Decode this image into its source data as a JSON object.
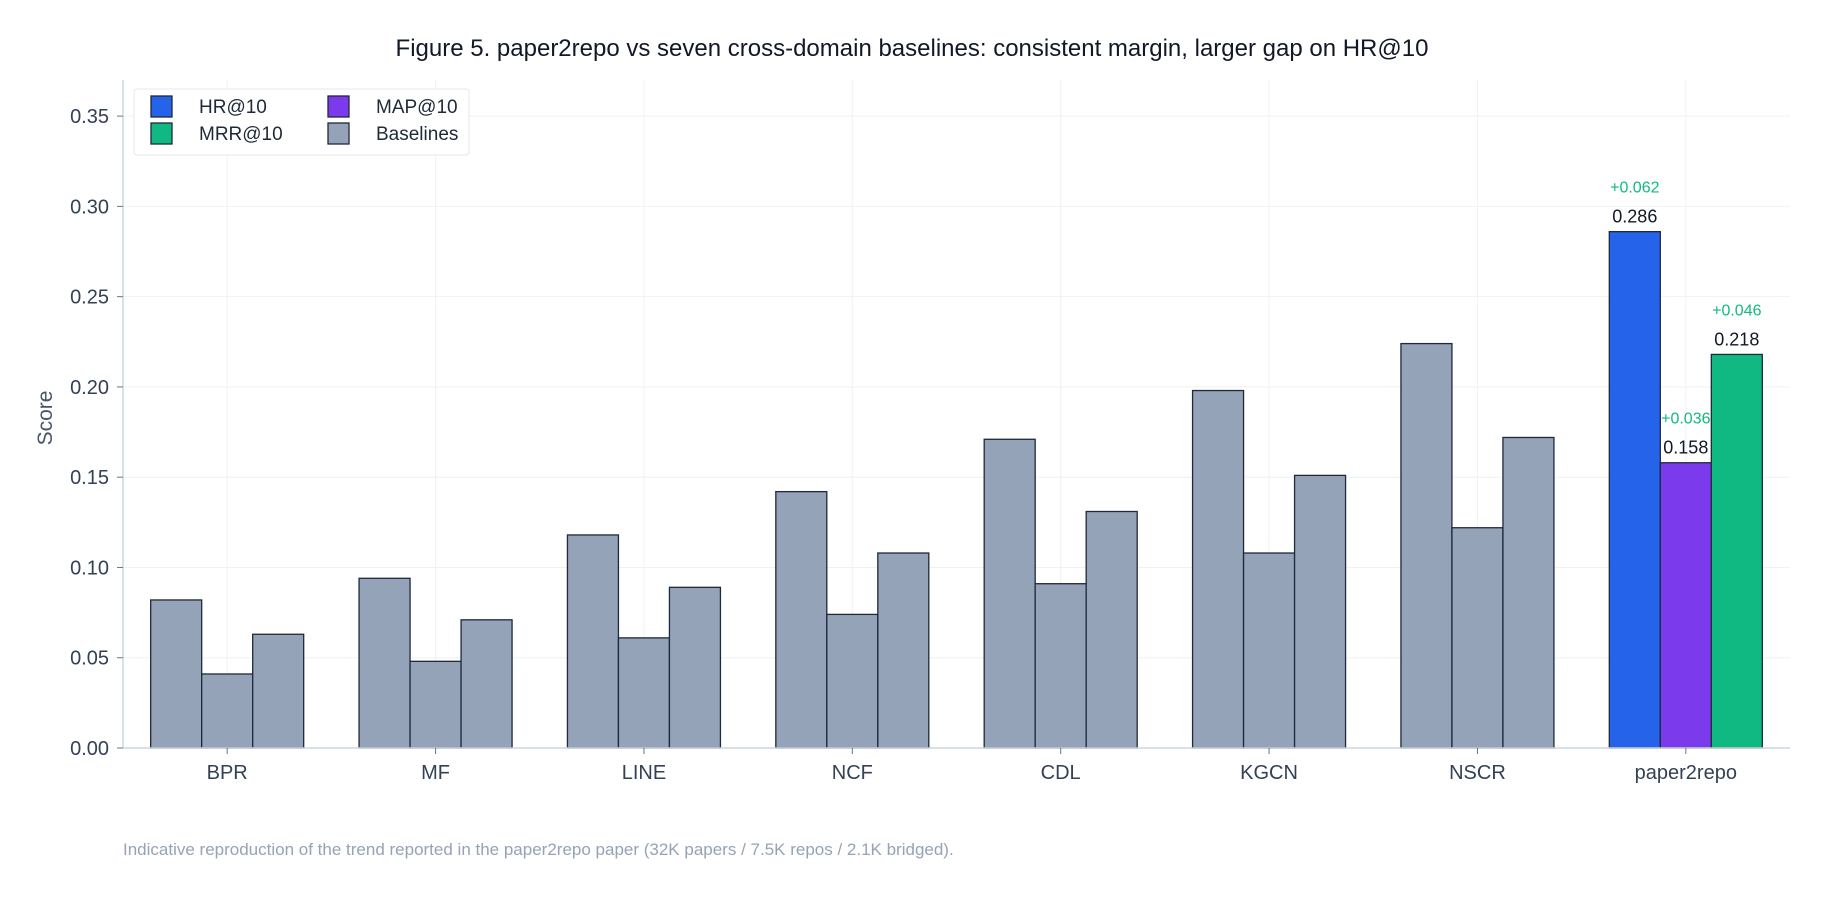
{
  "chart_data": {
    "type": "bar",
    "title": "Figure 5. paper2repo vs seven cross-domain baselines: consistent margin, larger gap on HR@10",
    "xlabel": "",
    "ylabel": "Score",
    "ylim": [
      0,
      0.37
    ],
    "yticks": [
      0.0,
      0.05,
      0.1,
      0.15,
      0.2,
      0.25,
      0.3,
      0.35
    ],
    "ytick_labels": [
      "0.00",
      "0.05",
      "0.10",
      "0.15",
      "0.20",
      "0.25",
      "0.30",
      "0.35"
    ],
    "grid": true,
    "categories": [
      "BPR",
      "MF",
      "LINE",
      "NCF",
      "CDL",
      "KGCN",
      "NSCR",
      "paper2repo"
    ],
    "series": [
      {
        "name": "HR@10",
        "values": [
          0.082,
          0.094,
          0.118,
          0.142,
          0.171,
          0.198,
          0.224,
          0.286
        ]
      },
      {
        "name": "MAP@10",
        "values": [
          0.041,
          0.048,
          0.061,
          0.074,
          0.091,
          0.108,
          0.122,
          0.158
        ]
      },
      {
        "name": "MRR@10",
        "values": [
          0.063,
          0.071,
          0.089,
          0.108,
          0.131,
          0.151,
          0.172,
          0.218
        ]
      }
    ],
    "legend": {
      "placement": "top-left",
      "entries": [
        "HR@10",
        "MAP@10",
        "MRR@10",
        "Baselines"
      ]
    },
    "colors": {
      "HR@10": "#2563eb",
      "MAP@10": "#7c3aed",
      "MRR@10": "#10b981",
      "Baselines": "#94a3b8",
      "gain": "#10b981",
      "bar_edge": "#1e293b",
      "axis": "#cbd5e1",
      "grid": "#eef2f6",
      "text": "#334155",
      "note": "#94a3b8"
    },
    "highlight_category": "paper2repo",
    "data_labels": [
      {
        "series": "HR@10",
        "value_label": "0.286",
        "gain_label": "+0.062"
      },
      {
        "series": "MAP@10",
        "value_label": "0.158",
        "gain_label": "+0.036"
      },
      {
        "series": "MRR@10",
        "value_label": "0.218",
        "gain_label": "+0.046"
      }
    ],
    "note": "Indicative reproduction of the trend reported in the paper2repo paper (32K papers / 7.5K repos / 2.1K bridged)."
  }
}
